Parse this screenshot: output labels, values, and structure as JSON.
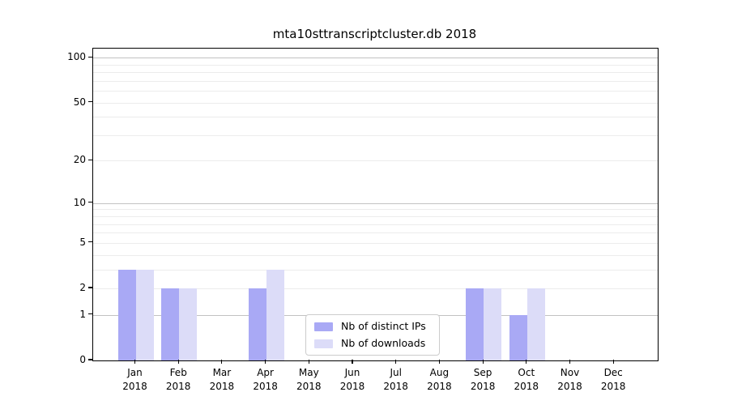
{
  "title": "mta10sttranscriptcluster.db 2018",
  "chart_data": {
    "type": "bar",
    "title": "mta10sttranscriptcluster.db 2018",
    "year": "2018",
    "categories": [
      "Jan",
      "Feb",
      "Mar",
      "Apr",
      "May",
      "Jun",
      "Jul",
      "Aug",
      "Sep",
      "Oct",
      "Nov",
      "Dec"
    ],
    "series": [
      {
        "name": "Nb of distinct IPs",
        "color": "#a9a9f5",
        "values": [
          3,
          2,
          0,
          2,
          0,
          0,
          0,
          0,
          2,
          1,
          0,
          0
        ]
      },
      {
        "name": "Nb of downloads",
        "color": "#dcdcf8",
        "values": [
          3,
          2,
          0,
          3,
          0,
          0,
          0,
          0,
          2,
          2,
          0,
          0
        ]
      }
    ],
    "xlabel": "",
    "ylabel": "",
    "yscale": "log1p",
    "ylim": [
      0,
      120
    ],
    "yticks": [
      0,
      1,
      2,
      5,
      10,
      20,
      50,
      100
    ],
    "grid": {
      "major": [
        1,
        10,
        100
      ],
      "minor": [
        2,
        3,
        4,
        5,
        6,
        7,
        8,
        9,
        20,
        30,
        40,
        50,
        60,
        70,
        80,
        90
      ]
    },
    "legend_position": "lower center inside plot",
    "bar_orientation": "vertical",
    "grouping": "paired side-by-side per month"
  },
  "colors": {
    "background": "#ffffff",
    "axis": "#000000",
    "grid_major": "#c2c2c2",
    "grid_minor": "#ececec",
    "legend_border": "#cccccc",
    "series_distinct_ips": "#a9a9f5",
    "series_downloads": "#dcdcf8"
  }
}
